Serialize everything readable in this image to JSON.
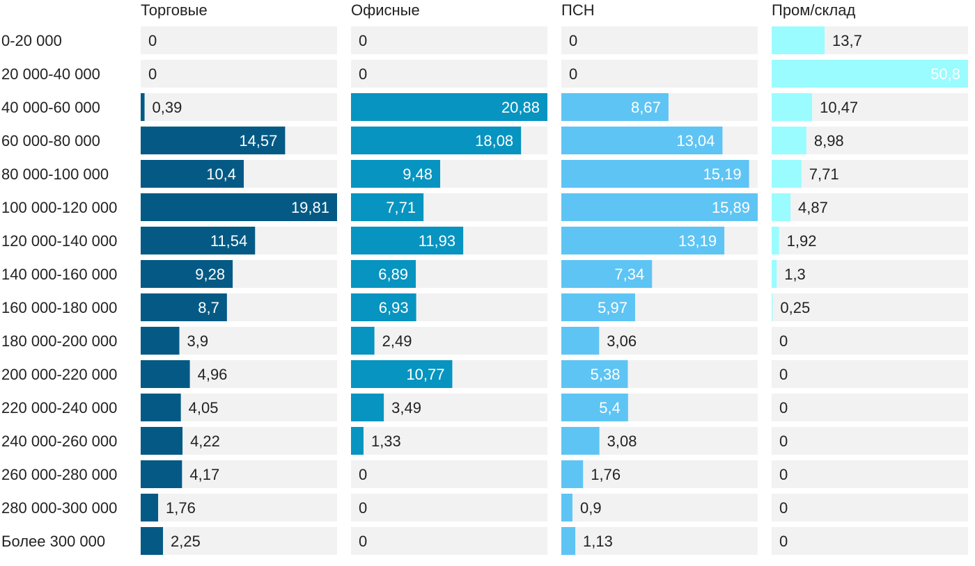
{
  "chart_data": {
    "type": "bar",
    "orientation": "horizontal",
    "layout": "small-multiples",
    "categories": [
      "0-20 000",
      "20 000-40 000",
      "40 000-60 000",
      "60 000-80 000",
      "80 000-100 000",
      "100 000-120 000",
      "120 000-140 000",
      "140 000-160 000",
      "160 000-180 000",
      "180 000-200 000",
      "200 000-220 000",
      "220 000-240 000",
      "240 000-260 000",
      "260 000-280 000",
      "280 000-300 000",
      "Более 300 000"
    ],
    "series": [
      {
        "name": "Торговые",
        "color": "#045A85",
        "xlim": [
          0,
          19.81
        ],
        "values": [
          0,
          0,
          0.39,
          14.57,
          10.4,
          19.81,
          11.54,
          9.28,
          8.7,
          3.9,
          4.96,
          4.05,
          4.22,
          4.17,
          1.76,
          2.25
        ],
        "labels": [
          "0",
          "0",
          "0,39",
          "14,57",
          "10,4",
          "19,81",
          "11,54",
          "9,28",
          "8,7",
          "3,9",
          "4,96",
          "4,05",
          "4,22",
          "4,17",
          "1,76",
          "2,25"
        ]
      },
      {
        "name": "Офисные",
        "color": "#0794C0",
        "xlim": [
          0,
          20.88
        ],
        "values": [
          0,
          0,
          20.88,
          18.08,
          9.48,
          7.71,
          11.93,
          6.89,
          6.93,
          2.49,
          10.77,
          3.49,
          1.33,
          0,
          0,
          0
        ],
        "labels": [
          "0",
          "0",
          "20,88",
          "18,08",
          "9,48",
          "7,71",
          "11,93",
          "6,89",
          "6,93",
          "2,49",
          "10,77",
          "3,49",
          "1,33",
          "0",
          "0",
          "0"
        ]
      },
      {
        "name": "ПСН",
        "color": "#5EC4F4",
        "xlim": [
          0,
          15.89
        ],
        "values": [
          0,
          0,
          8.67,
          13.04,
          15.19,
          15.89,
          13.19,
          7.34,
          5.97,
          3.06,
          5.38,
          5.4,
          3.08,
          1.76,
          0.9,
          1.13
        ],
        "labels": [
          "0",
          "0",
          "8,67",
          "13,04",
          "15,19",
          "15,89",
          "13,19",
          "7,34",
          "5,97",
          "3,06",
          "5,38",
          "5,4",
          "3,08",
          "1,76",
          "0,9",
          "1,13"
        ]
      },
      {
        "name": "Пром/склад",
        "color": "#9AFCFF",
        "xlim": [
          0,
          50.8
        ],
        "values": [
          13.7,
          50.8,
          10.47,
          8.98,
          7.71,
          4.87,
          1.92,
          1.3,
          0.25,
          0,
          0,
          0,
          0,
          0,
          0,
          0
        ],
        "labels": [
          "13,7",
          "50,8",
          "10,47",
          "8,98",
          "7,71",
          "4,87",
          "1,92",
          "1,3",
          "0,25",
          "0",
          "0",
          "0",
          "0",
          "0",
          "0",
          "0"
        ]
      }
    ],
    "track_color": "#F2F2F2",
    "text_color": "#222222",
    "inside_label_color": "#FFFFFF",
    "grid": false,
    "legend": "none"
  }
}
